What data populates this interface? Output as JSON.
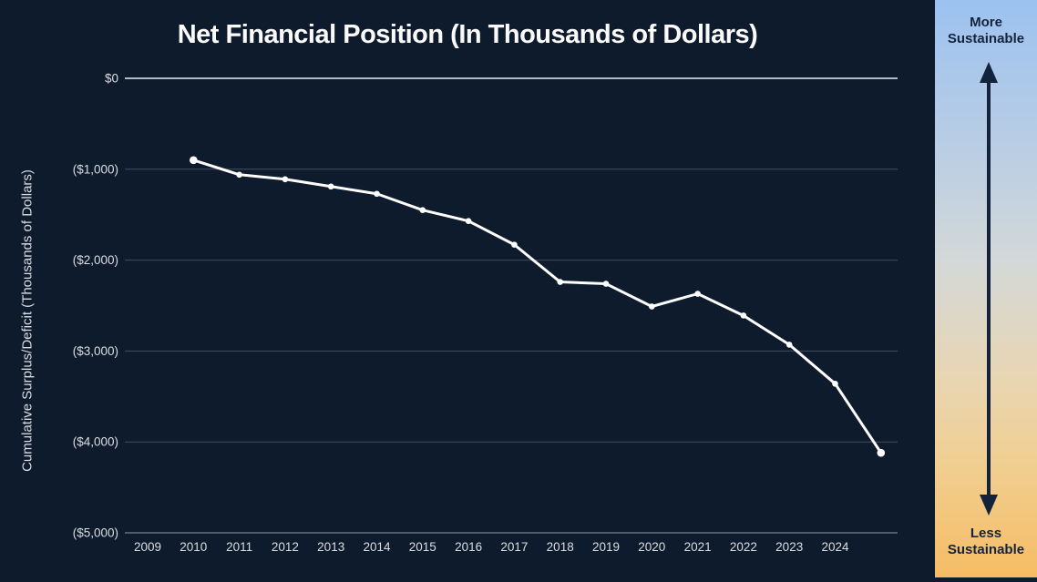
{
  "title": "Net Financial Position (In Thousands of Dollars)",
  "y_axis_label": "Cumulative Surplus/Deficit (Thousands of Dollars)",
  "sidebar": {
    "top_label": "More\nSustainable",
    "bottom_label": "Less\nSustainable",
    "gradient_top_color": "#9cc2f0",
    "gradient_bottom_color": "#f6bc64",
    "arrow_color": "#14233c",
    "text_color": "#14233c"
  },
  "colors": {
    "background": "#0e1b2d",
    "line": "#ffffff",
    "zero_gridline": "#b3bac3",
    "minor_gridline": "rgba(255,255,255,0.22)",
    "axis_line": "#4e5a6e",
    "title_text": "#fbfbfc",
    "tick_text": "#dadee2"
  },
  "chart_data": {
    "type": "line",
    "title": "Net Financial Position (In Thousands of Dollars)",
    "xlabel": "",
    "ylabel": "Cumulative Surplus/Deficit (Thousands of Dollars)",
    "ylim": [
      -5000,
      0
    ],
    "grid": true,
    "legend": false,
    "x_tick_labels": [
      "2009",
      "2010",
      "2011",
      "2012",
      "2013",
      "2014",
      "2015",
      "2016",
      "2017",
      "2018",
      "2019",
      "2020",
      "2021",
      "2022",
      "2023",
      "2024"
    ],
    "y_ticks": [
      {
        "label": "$0",
        "value": 0
      },
      {
        "label": "($1,000)",
        "value": -1000
      },
      {
        "label": "($2,000)",
        "value": -2000
      },
      {
        "label": "($3,000)",
        "value": -3000
      },
      {
        "label": "($4,000)",
        "value": -4000
      },
      {
        "label": "($5,000)",
        "value": -5000
      }
    ],
    "series": [
      {
        "name": "Cumulative Surplus/Deficit",
        "x": [
          2010,
          2011,
          2012,
          2013,
          2014,
          2015,
          2016,
          2017,
          2018,
          2019,
          2020,
          2021,
          2022,
          2023,
          2024,
          2025
        ],
        "values": [
          -900,
          -1060,
          -1110,
          -1190,
          -1270,
          -1450,
          -1570,
          -1830,
          -2240,
          -2260,
          -2510,
          -2370,
          -2610,
          -2930,
          -3360,
          -4120
        ]
      }
    ]
  }
}
